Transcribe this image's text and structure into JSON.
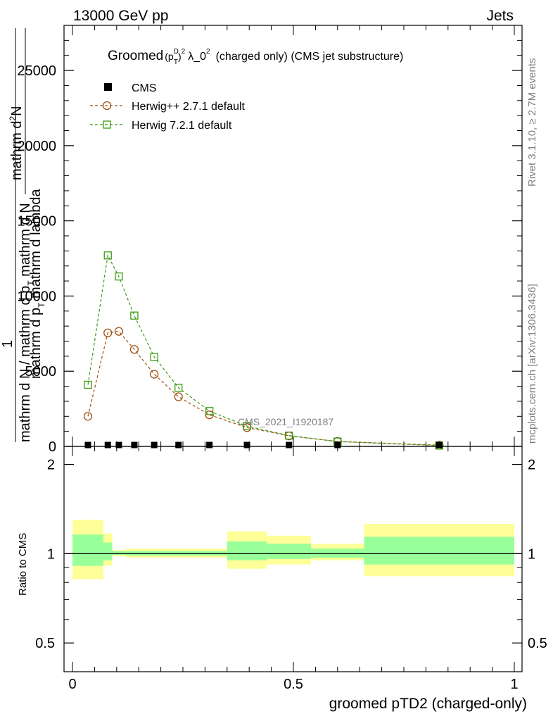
{
  "header": {
    "left": "13000 GeV pp",
    "right": "Jets"
  },
  "plot": {
    "title_prefix": "Groomed",
    "title_p": "(p",
    "title_sup_d": "D",
    "title_sub_t": "T",
    "title_close": ")",
    "title_sup_2": "2",
    "title_lambda": "λ_0",
    "title_sup_2b": "2",
    "title_suffix": "(charged only) (CMS jet substructure)",
    "ylabel_top_line1": "mathrm d",
    "ylabel_top_sup": "2",
    "ylabel_top_N": "N",
    "ylabel_top_line2": "mathrm d p",
    "ylabel_top_sub": "T",
    "ylabel_top_rest": " mathrm d lambda",
    "ylabel_one": "1",
    "ylabel_bottom": "mathrm d N / mathrm d p",
    "ylabel_bottom_sub": "T",
    "ylabel_bottom_rest": " mathrm d N",
    "watermark": "CMS_2021_I1920187",
    "side_top": "Rivet 3.1.10, ≥ 2.7M events",
    "side_bottom": "mcplots.cern.ch [arXiv:1306.3436]",
    "ratio_ylabel": "Ratio to CMS",
    "xlabel": "groomed pTD2 (charged-only)"
  },
  "legend": {
    "entries": [
      {
        "label": "CMS",
        "color": "#000000",
        "marker": "square-filled"
      },
      {
        "label": "Herwig++ 2.7.1 default",
        "color": "#a05010",
        "marker": "circle-open"
      },
      {
        "label": "Herwig 7.2.1 default",
        "color": "#3a9a10",
        "marker": "square-open"
      }
    ]
  },
  "chart_data": {
    "type": "line",
    "xlim": [
      0,
      1
    ],
    "ylim": [
      0,
      28000
    ],
    "y_ticks": [
      0,
      5000,
      10000,
      15000,
      20000,
      25000
    ],
    "y_tick_labels": [
      "0",
      "5000",
      "10000",
      "15000",
      "20000",
      "25000"
    ],
    "x_ticks": [
      0,
      0.5,
      1
    ],
    "x_tick_labels": [
      "0",
      "0.5",
      "1"
    ],
    "series": [
      {
        "name": "CMS",
        "x": [
          0.035,
          0.08,
          0.105,
          0.14,
          0.185,
          0.24,
          0.31,
          0.395,
          0.49,
          0.6,
          0.83
        ],
        "y": [
          80,
          90,
          95,
          90,
          85,
          70,
          50,
          30,
          15,
          6,
          1
        ]
      },
      {
        "name": "Herwig++ 2.7.1 default",
        "x": [
          0.035,
          0.08,
          0.105,
          0.14,
          0.185,
          0.24,
          0.31,
          0.395,
          0.49,
          0.6,
          0.83
        ],
        "y": [
          2000,
          7550,
          7650,
          6450,
          4800,
          3300,
          2100,
          1250,
          700,
          330,
          80
        ]
      },
      {
        "name": "Herwig 7.2.1 default",
        "x": [
          0.035,
          0.08,
          0.105,
          0.14,
          0.185,
          0.24,
          0.31,
          0.395,
          0.49,
          0.6,
          0.83
        ],
        "y": [
          4100,
          12700,
          11300,
          8700,
          5950,
          3900,
          2350,
          1350,
          720,
          320,
          55
        ]
      }
    ],
    "ratio": {
      "ylim": [
        0.4,
        2.3
      ],
      "y_ticks": [
        0.5,
        1,
        2
      ],
      "y_tick_labels": [
        "0.5",
        "1",
        "2"
      ],
      "bins": [
        {
          "lo": 0.0,
          "hi": 0.07,
          "yellow": [
            0.82,
            1.3
          ],
          "green": [
            0.91,
            1.16
          ]
        },
        {
          "lo": 0.07,
          "hi": 0.09,
          "yellow": [
            0.91,
            1.17
          ],
          "green": [
            0.95,
            1.09
          ]
        },
        {
          "lo": 0.09,
          "hi": 0.12,
          "yellow": [
            0.98,
            1.03
          ],
          "green": [
            0.99,
            1.02
          ]
        },
        {
          "lo": 0.12,
          "hi": 0.21,
          "yellow": [
            0.97,
            1.04
          ],
          "green": [
            0.985,
            1.02
          ]
        },
        {
          "lo": 0.21,
          "hi": 0.35,
          "yellow": [
            0.97,
            1.04
          ],
          "green": [
            0.985,
            1.02
          ]
        },
        {
          "lo": 0.35,
          "hi": 0.44,
          "yellow": [
            0.89,
            1.19
          ],
          "green": [
            0.95,
            1.1
          ]
        },
        {
          "lo": 0.44,
          "hi": 0.54,
          "yellow": [
            0.92,
            1.15
          ],
          "green": [
            0.96,
            1.08
          ]
        },
        {
          "lo": 0.54,
          "hi": 0.66,
          "yellow": [
            0.95,
            1.08
          ],
          "green": [
            0.97,
            1.04
          ]
        },
        {
          "lo": 0.66,
          "hi": 1.0,
          "yellow": [
            0.84,
            1.26
          ],
          "green": [
            0.92,
            1.14
          ]
        }
      ]
    }
  }
}
